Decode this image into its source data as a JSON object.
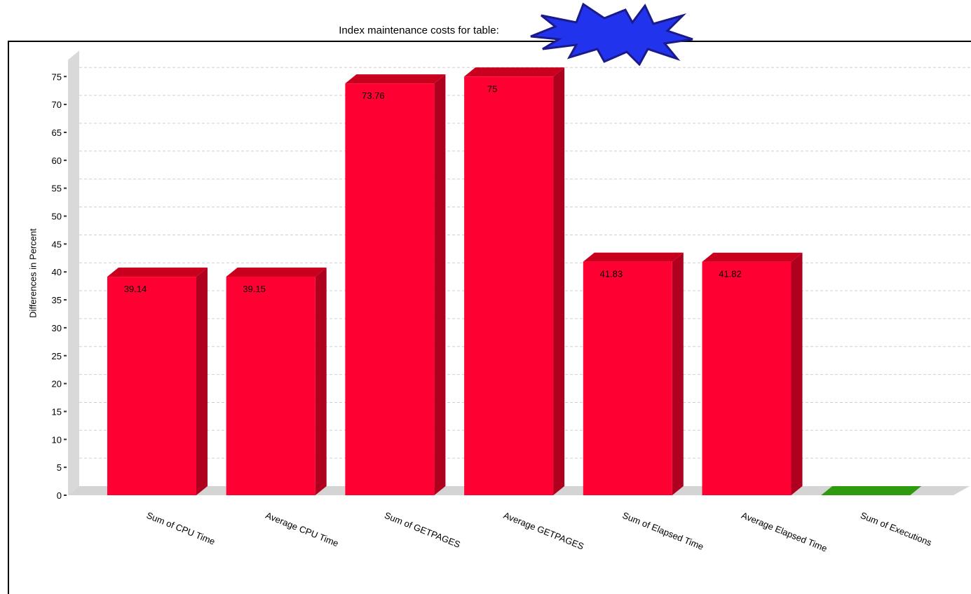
{
  "title": "Index maintenance costs for table:",
  "chart_data": {
    "type": "bar",
    "title": "Index maintenance costs for table:",
    "xlabel": "",
    "ylabel": "Differences in Percent",
    "ylim": [
      0,
      75
    ],
    "yticks": [
      0,
      5,
      10,
      15,
      20,
      25,
      30,
      35,
      40,
      45,
      50,
      55,
      60,
      65,
      70,
      75
    ],
    "grid": true,
    "categories": [
      "Sum of CPU Time",
      "Average CPU Time",
      "Sum of GETPAGES",
      "Average GETPAGES",
      "Sum of Elapsed Time",
      "Average Elapsed Time",
      "Sum of Executions"
    ],
    "values": [
      39.14,
      39.15,
      73.76,
      75,
      41.83,
      41.82,
      0
    ],
    "value_labels": [
      "39.14",
      "39.15",
      "73.76",
      "75",
      "41.83",
      "41.82",
      ""
    ],
    "colors": [
      "#ff0033",
      "#ff0033",
      "#ff0033",
      "#ff0033",
      "#ff0033",
      "#ff0033",
      "#2e9a0e"
    ]
  },
  "colors": {
    "bar": "#ff0033",
    "bar_side": "#b00020",
    "bar_top": "#c8001e",
    "zero_bar": "#2e9a0e"
  },
  "redaction_icon": "starburst-redaction"
}
